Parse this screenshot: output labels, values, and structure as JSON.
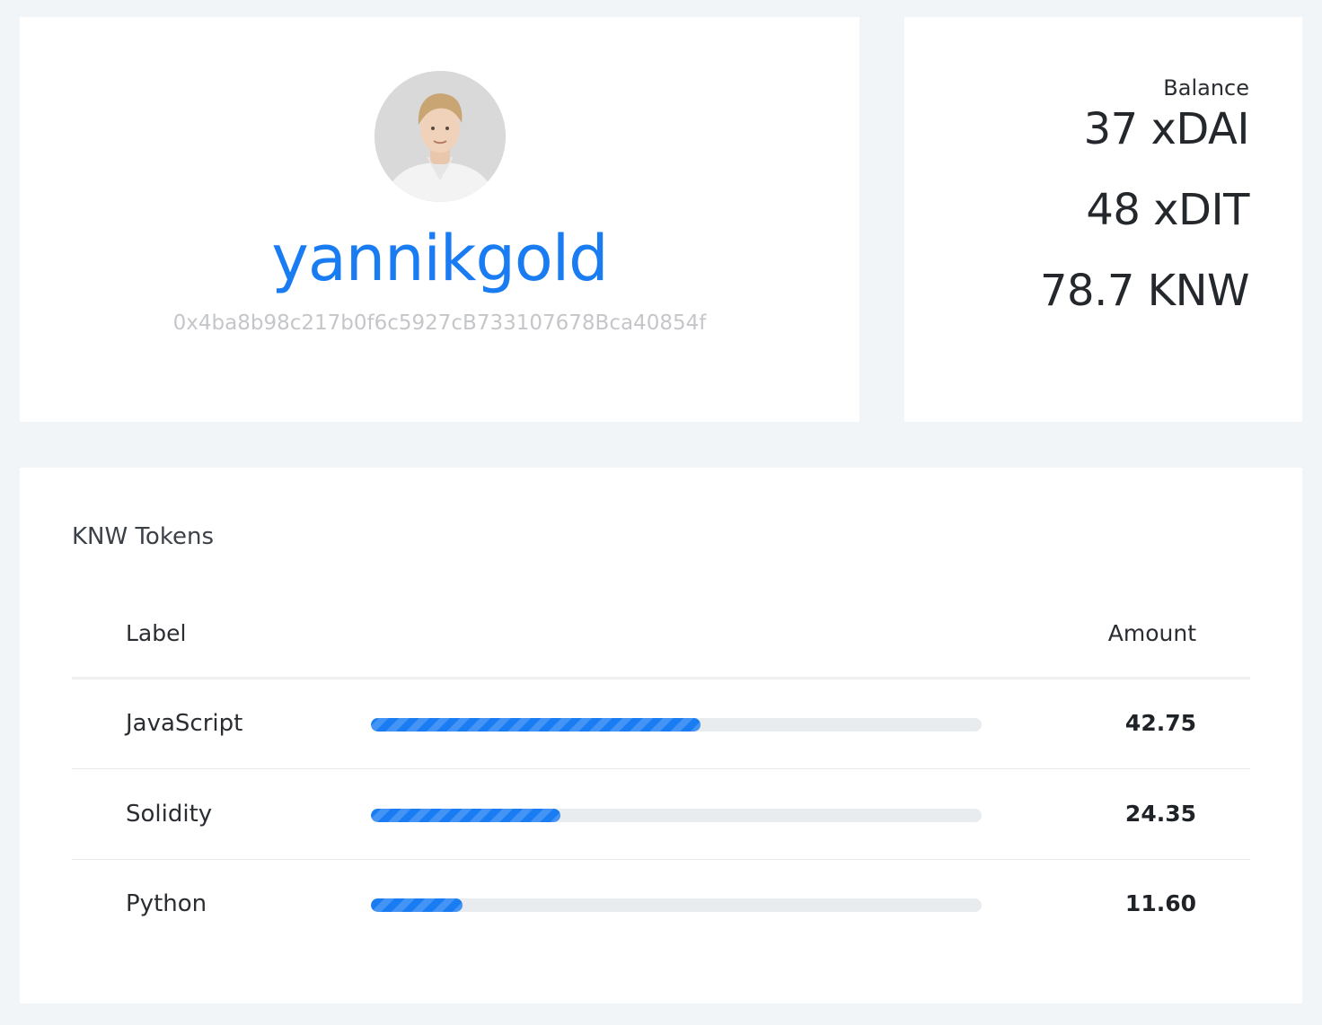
{
  "profile": {
    "username": "yannikgold",
    "address": "0x4ba8b98c217b0f6c5927cB733107678Bca40854f",
    "avatar_icon": "user-photo-avatar"
  },
  "balance": {
    "label": "Balance",
    "values": [
      "37 xDAI",
      "48 xDIT",
      "78.7 KNW"
    ]
  },
  "knw_tokens": {
    "title": "KNW Tokens",
    "columns": {
      "label": "Label",
      "amount": "Amount"
    },
    "rows": [
      {
        "label": "JavaScript",
        "amount": "42.75",
        "progress": 0.54
      },
      {
        "label": "Solidity",
        "amount": "24.35",
        "progress": 0.31
      },
      {
        "label": "Python",
        "amount": "11.60",
        "progress": 0.15
      }
    ]
  },
  "colors": {
    "accent": "#1a7cf2",
    "page_background": "#f1f5f8",
    "track": "#e9ecef"
  }
}
